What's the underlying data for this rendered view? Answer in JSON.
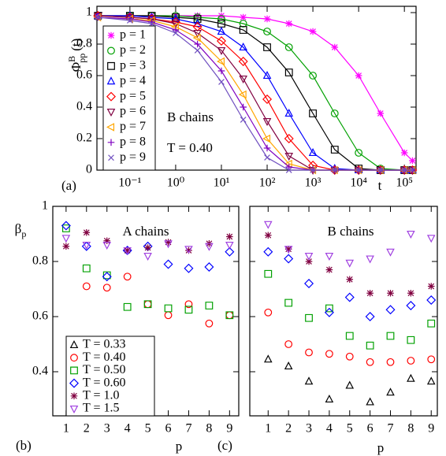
{
  "chart_data": [
    {
      "type": "line",
      "xlog": true,
      "xlim": [
        0.019,
        180000
      ],
      "ylim": [
        0,
        1.04
      ],
      "xticks": [
        {
          "value": 0.1,
          "label": "10⁻¹"
        },
        {
          "value": 1,
          "label": "10⁰"
        },
        {
          "value": 10,
          "label": "10¹"
        },
        {
          "value": 100,
          "label": "10²"
        },
        {
          "value": 1000,
          "label": "10³"
        },
        {
          "value": 10000,
          "label": "10⁴"
        },
        {
          "value": 100000,
          "label": "10⁵"
        }
      ],
      "yticks": [
        0,
        0.2,
        0.4,
        0.6,
        0.8,
        1
      ],
      "xlabel": "t",
      "ylabel": {
        "symbol": "Φ",
        "sup": "B",
        "sub": "pp",
        "tail": "(t)"
      },
      "panel_label": "(a)",
      "annotations": [
        "B chains",
        "T = 0.40"
      ],
      "legend": "left",
      "x": [
        0.02,
        0.1,
        0.3,
        1,
        3,
        10,
        30,
        100,
        300,
        1000,
        3000,
        10000,
        30000,
        100000,
        150000
      ],
      "series": [
        {
          "name": "p = 1",
          "color": "#ff00ff",
          "marker": "star",
          "values": [
            0.98,
            0.98,
            0.98,
            0.98,
            0.98,
            0.98,
            0.97,
            0.96,
            0.93,
            0.88,
            0.78,
            0.6,
            0.36,
            0.11,
            0.06
          ]
        },
        {
          "name": "p = 2",
          "color": "#00a000",
          "marker": "circle",
          "values": [
            0.98,
            0.98,
            0.98,
            0.98,
            0.97,
            0.96,
            0.93,
            0.88,
            0.78,
            0.6,
            0.36,
            0.11,
            0.01,
            0.0,
            0.0
          ]
        },
        {
          "name": "p = 3",
          "color": "#000000",
          "marker": "square",
          "values": [
            0.98,
            0.98,
            0.98,
            0.97,
            0.96,
            0.93,
            0.89,
            0.78,
            0.62,
            0.36,
            0.13,
            0.01,
            0.0,
            0.0,
            0.0
          ]
        },
        {
          "name": "p = 4",
          "color": "#0000ff",
          "marker": "triangle-up",
          "values": [
            0.98,
            0.98,
            0.97,
            0.96,
            0.93,
            0.88,
            0.78,
            0.6,
            0.36,
            0.11,
            0.01,
            0.0,
            0.0,
            0.0,
            0.0
          ]
        },
        {
          "name": "p = 5",
          "color": "#ff0000",
          "marker": "diamond",
          "values": [
            0.98,
            0.97,
            0.96,
            0.94,
            0.91,
            0.82,
            0.69,
            0.45,
            0.2,
            0.03,
            0.0,
            0.0,
            0.0,
            0.0,
            0.0
          ]
        },
        {
          "name": "p = 6",
          "color": "#800040",
          "marker": "triangle-down",
          "values": [
            0.98,
            0.97,
            0.96,
            0.93,
            0.87,
            0.76,
            0.58,
            0.31,
            0.09,
            0.0,
            0.0,
            0.0,
            0.0,
            0.0,
            0.0
          ]
        },
        {
          "name": "p = 7",
          "color": "#ffa500",
          "marker": "triangle-left",
          "values": [
            0.97,
            0.96,
            0.95,
            0.91,
            0.84,
            0.69,
            0.48,
            0.2,
            0.04,
            0.0,
            0.0,
            0.0,
            0.0,
            0.0,
            0.0
          ]
        },
        {
          "name": "p = 8",
          "color": "#8000c0",
          "marker": "plus",
          "values": [
            0.97,
            0.96,
            0.94,
            0.89,
            0.8,
            0.63,
            0.4,
            0.14,
            0.02,
            0.0,
            0.0,
            0.0,
            0.0,
            0.0,
            0.0
          ]
        },
        {
          "name": "p = 9",
          "color": "#7050c0",
          "marker": "x",
          "values": [
            0.97,
            0.95,
            0.93,
            0.87,
            0.76,
            0.56,
            0.32,
            0.08,
            0.0,
            0.0,
            0.0,
            0.0,
            0.0,
            0.0,
            0.0
          ]
        }
      ]
    },
    {
      "type": "scatter",
      "xlim": [
        0.35,
        9.45
      ],
      "ylim": [
        0.24,
        1.0
      ],
      "xticks": [
        1,
        2,
        3,
        4,
        5,
        6,
        7,
        8,
        9
      ],
      "yticks": [
        0.4,
        0.6,
        0.8,
        1
      ],
      "title": "A chains",
      "xlabel": "p",
      "ylabel": {
        "symbol": "β",
        "sub": "p"
      },
      "panel_label": "(b)",
      "legend": "lower left",
      "x": [
        1,
        2,
        3,
        4,
        5,
        6,
        7,
        8,
        9
      ],
      "series": [
        {
          "name": "T = 0.33",
          "color": "#000000",
          "marker": "triangle-up",
          "values": [
            null,
            null,
            null,
            null,
            null,
            null,
            null,
            null,
            null
          ]
        },
        {
          "name": "T = 0.40",
          "color": "#ff0000",
          "marker": "circle",
          "values": [
            null,
            0.71,
            0.705,
            0.745,
            0.645,
            0.605,
            0.645,
            0.575,
            0.605
          ]
        },
        {
          "name": "T = 0.50",
          "color": "#00a000",
          "marker": "square",
          "values": [
            0.92,
            0.775,
            0.75,
            0.635,
            0.645,
            0.63,
            0.625,
            0.64,
            0.605
          ]
        },
        {
          "name": "T = 0.60",
          "color": "#0000ff",
          "marker": "diamond",
          "values": [
            0.93,
            0.855,
            0.745,
            0.84,
            0.855,
            0.79,
            0.775,
            0.78,
            0.835
          ]
        },
        {
          "name": "T = 1.0",
          "color": "#800040",
          "marker": "star",
          "values": [
            0.855,
            0.905,
            0.875,
            0.84,
            0.85,
            0.87,
            0.84,
            0.865,
            0.89
          ]
        },
        {
          "name": "T = 1.5",
          "color": "#a040e0",
          "marker": "triangle-down",
          "values": [
            0.885,
            0.86,
            0.86,
            0.84,
            0.82,
            0.865,
            0.845,
            0.855,
            0.86
          ]
        }
      ]
    },
    {
      "type": "scatter",
      "xlim": [
        0.1,
        9.3
      ],
      "ylim": [
        0.24,
        1.0
      ],
      "xticks": [
        1,
        2,
        3,
        4,
        5,
        6,
        7,
        8,
        9
      ],
      "yticks": [
        0.4,
        0.6,
        0.8,
        1
      ],
      "ytick_labels": false,
      "title": "B chains",
      "xlabel": "p",
      "panel_label": "(c)",
      "x": [
        1,
        2,
        3,
        4,
        5,
        6,
        7,
        8,
        9
      ],
      "series": [
        {
          "color": "#000000",
          "marker": "triangle-up",
          "values": [
            0.445,
            0.42,
            0.365,
            0.3,
            0.35,
            0.29,
            0.325,
            0.375,
            0.365
          ]
        },
        {
          "color": "#ff0000",
          "marker": "circle",
          "values": [
            0.615,
            0.5,
            0.47,
            0.465,
            0.455,
            0.435,
            0.435,
            0.44,
            0.445
          ]
        },
        {
          "color": "#00a000",
          "marker": "square",
          "values": [
            0.755,
            0.65,
            0.595,
            0.63,
            0.53,
            0.495,
            0.53,
            0.515,
            0.575
          ]
        },
        {
          "color": "#0000ff",
          "marker": "diamond",
          "values": [
            0.835,
            0.81,
            0.72,
            0.615,
            0.67,
            0.6,
            0.625,
            0.64,
            0.66
          ]
        },
        {
          "color": "#800040",
          "marker": "star",
          "values": [
            0.895,
            0.845,
            0.8,
            0.77,
            0.735,
            0.685,
            0.685,
            0.685,
            0.71
          ]
        },
        {
          "color": "#a040e0",
          "marker": "triangle-down",
          "values": [
            0.935,
            0.845,
            0.82,
            0.82,
            0.795,
            0.81,
            0.835,
            0.9,
            0.885
          ]
        }
      ]
    }
  ]
}
